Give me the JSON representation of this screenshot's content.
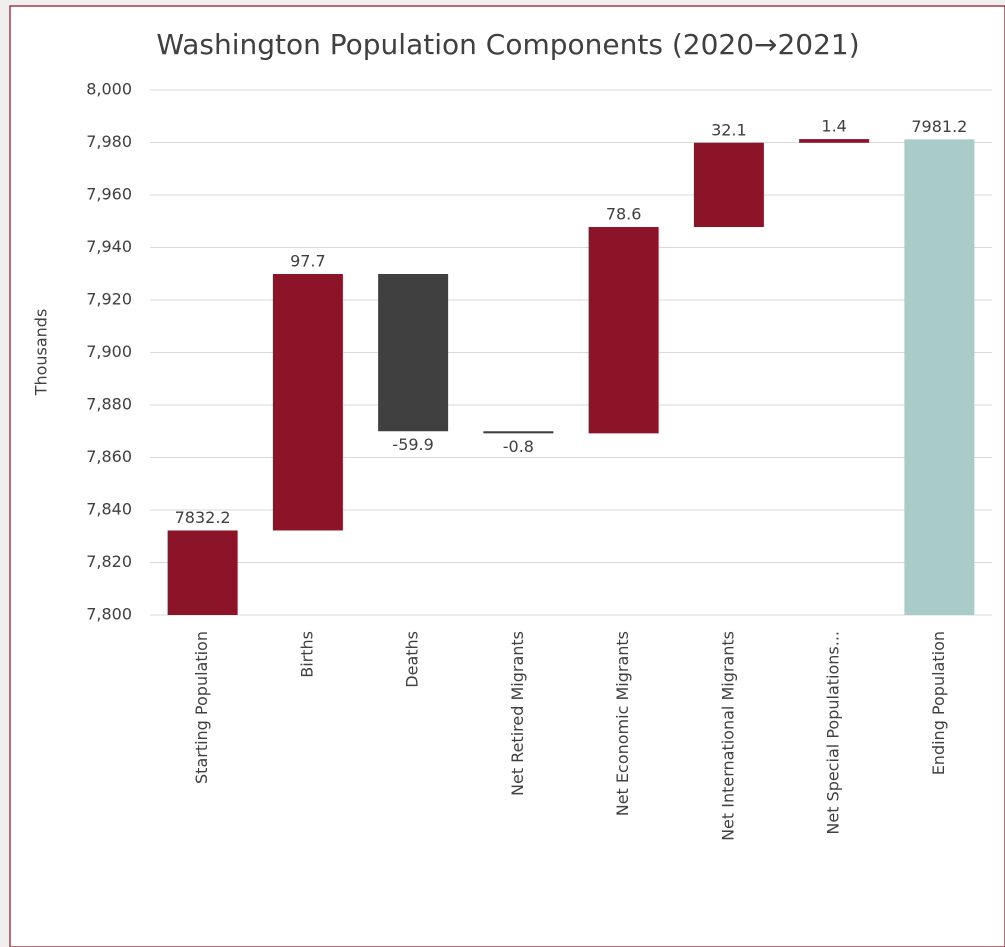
{
  "chart_data": {
    "type": "waterfall",
    "title": "Washington Population Components (2020→2021)",
    "y_label": "Thousands",
    "categories": [
      "Starting Population",
      "Births",
      "Deaths",
      "Net Retired Migrants",
      "Net Economic Migrants",
      "Net International Migrants",
      "Net Special Populations...",
      "Ending Population"
    ],
    "values": [
      7832.2,
      97.7,
      -59.9,
      -0.8,
      78.6,
      32.1,
      1.4,
      7981.2
    ],
    "is_total": [
      true,
      false,
      false,
      false,
      false,
      false,
      false,
      true
    ],
    "colors": [
      "#8b1428",
      "#8b1428",
      "#404040",
      "#404040",
      "#8b1428",
      "#8b1428",
      "#8b1428",
      "#a9ccc9"
    ],
    "ylim": [
      7800,
      8000
    ],
    "yticks": [
      {
        "value": 7800,
        "label": "7,800"
      },
      {
        "value": 7820,
        "label": "7,820"
      },
      {
        "value": 7840,
        "label": "7,840"
      },
      {
        "value": 7860,
        "label": "7,860"
      },
      {
        "value": 7880,
        "label": "7,880"
      },
      {
        "value": 7900,
        "label": "7,900"
      },
      {
        "value": 7920,
        "label": "7,920"
      },
      {
        "value": 7940,
        "label": "7,940"
      },
      {
        "value": 7960,
        "label": "7,960"
      },
      {
        "value": 7980,
        "label": "7,980"
      },
      {
        "value": 8000,
        "label": "8,000"
      }
    ],
    "grid": true
  }
}
